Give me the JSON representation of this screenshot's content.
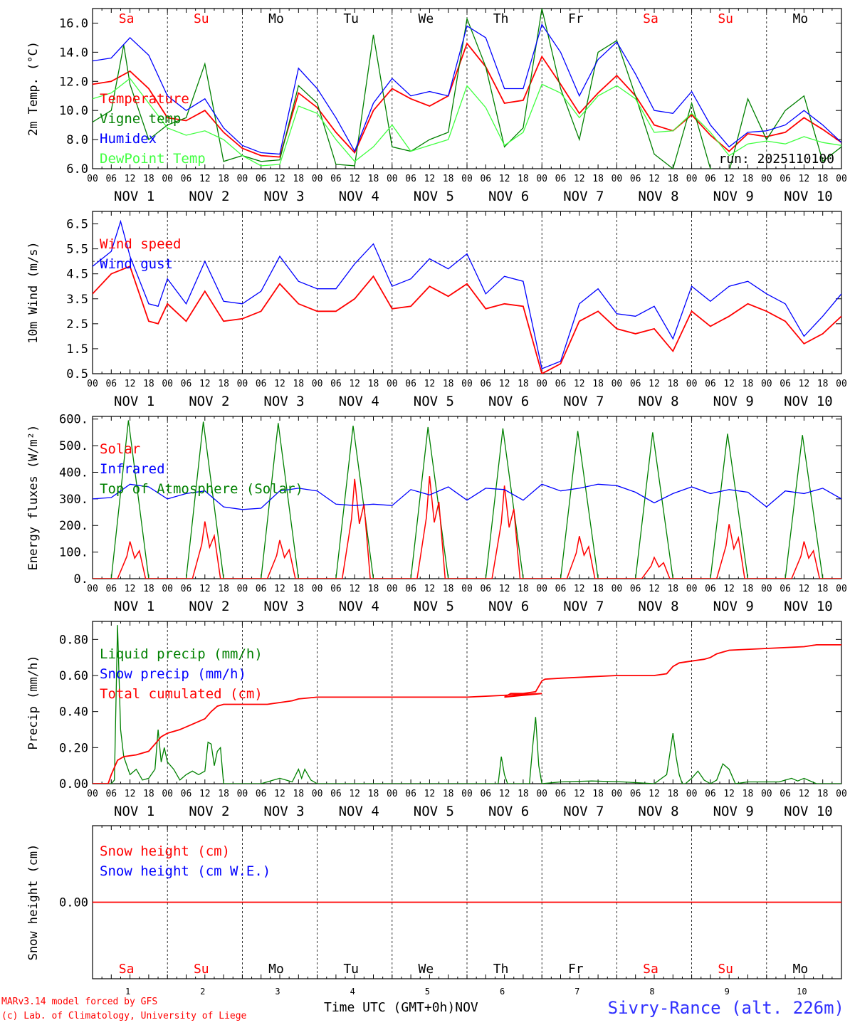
{
  "footer": {
    "model": "MARv3.14 model forced by GFS",
    "lab": "(c) Lab. of Climatology, University of Liege",
    "time_axis": "Time UTC (GMT+0h)",
    "month_label": "NOV",
    "station": "Sivry-Rance (alt. 226m)"
  },
  "colors": {
    "red": "#ff0000",
    "green": "#008000",
    "blue": "#0000ff",
    "lightgreen": "#40ff40",
    "weekend": "#ff0000",
    "weekday": "#000000"
  },
  "days": [
    "Sa",
    "Su",
    "Mo",
    "Tu",
    "We",
    "Th",
    "Fr",
    "Sa",
    "Su",
    "Mo"
  ],
  "weekend_days": [
    0,
    1,
    7,
    8
  ],
  "date_labels": [
    "NOV  1",
    "NOV  2",
    "NOV  3",
    "NOV  4",
    "NOV  5",
    "NOV  6",
    "NOV  7",
    "NOV  8",
    "NOV  9",
    "NOV 10"
  ],
  "bottom_day_numbers": [
    "1",
    "2",
    "3",
    "4",
    "5",
    "6",
    "7",
    "8",
    "9",
    "10"
  ],
  "hour_ticks": [
    "00",
    "06",
    "12",
    "18"
  ],
  "chart_data": [
    {
      "id": "temperature",
      "type": "line",
      "ylabel": "2m Temp. (°C)",
      "ylim": [
        6.0,
        17.0
      ],
      "yticks": [
        6.0,
        8.0,
        10.0,
        12.0,
        14.0,
        16.0
      ],
      "run_label": "run: 2025110100",
      "x_unit": "hours since 2025-11-01 00 UTC",
      "xlim": [
        0,
        240
      ],
      "legend": [
        "Temperature",
        "Vigne temp",
        "Humidex",
        "DewPoint Temp"
      ],
      "series": [
        {
          "name": "Temperature",
          "color": "red",
          "x": [
            0,
            6,
            12,
            18,
            24,
            30,
            36,
            42,
            48,
            54,
            60,
            66,
            72,
            78,
            84,
            90,
            96,
            102,
            108,
            114,
            120,
            126,
            132,
            138,
            144,
            150,
            156,
            162,
            168,
            174,
            180,
            186,
            192,
            198,
            204,
            210,
            216,
            222,
            228,
            234,
            240
          ],
          "y": [
            11.8,
            12.0,
            12.7,
            11.5,
            9.5,
            9.3,
            10.0,
            8.5,
            7.4,
            6.9,
            6.8,
            11.2,
            10.2,
            8.5,
            7.1,
            10.0,
            11.5,
            10.8,
            10.3,
            11.0,
            14.6,
            13.0,
            10.5,
            10.7,
            13.7,
            11.8,
            9.8,
            11.2,
            12.4,
            11.0,
            9.0,
            8.6,
            9.7,
            8.3,
            7.2,
            8.4,
            8.2,
            8.5,
            9.5,
            8.7,
            7.8
          ]
        },
        {
          "name": "Vigne temp",
          "color": "green",
          "x": [
            0,
            6,
            10,
            12,
            18,
            24,
            30,
            36,
            42,
            48,
            54,
            60,
            66,
            72,
            78,
            84,
            90,
            96,
            102,
            108,
            114,
            120,
            126,
            132,
            138,
            144,
            150,
            156,
            162,
            168,
            174,
            180,
            186,
            192,
            198,
            204,
            210,
            216,
            222,
            228,
            234,
            240
          ],
          "y": [
            9.2,
            10.0,
            14.5,
            11.8,
            8.0,
            9.0,
            9.5,
            13.2,
            6.5,
            6.9,
            6.5,
            6.6,
            11.7,
            10.5,
            6.3,
            6.2,
            15.2,
            7.5,
            7.2,
            8.0,
            8.5,
            16.3,
            13.0,
            7.5,
            8.8,
            17.0,
            11.5,
            8.0,
            14.0,
            14.8,
            11.0,
            7.0,
            6.0,
            10.5,
            6.0,
            5.8,
            10.8,
            8.0,
            10.0,
            11.0,
            6.5,
            7.5
          ]
        },
        {
          "name": "Humidex",
          "color": "blue",
          "x": [
            0,
            6,
            12,
            18,
            24,
            30,
            36,
            42,
            48,
            54,
            60,
            66,
            72,
            78,
            84,
            90,
            96,
            102,
            108,
            114,
            120,
            126,
            132,
            138,
            144,
            150,
            156,
            162,
            168,
            174,
            180,
            186,
            192,
            198,
            204,
            210,
            216,
            222,
            228,
            234,
            240
          ],
          "y": [
            13.4,
            13.6,
            15.0,
            13.8,
            11.0,
            10.0,
            10.8,
            8.8,
            7.6,
            7.1,
            7.0,
            12.9,
            11.5,
            9.5,
            7.2,
            10.5,
            12.2,
            11.0,
            11.3,
            11.0,
            15.8,
            15.0,
            11.5,
            11.5,
            15.9,
            14.0,
            11.0,
            13.5,
            14.7,
            12.5,
            10.0,
            9.8,
            11.3,
            9.0,
            7.5,
            8.5,
            8.6,
            9.0,
            10.0,
            9.0,
            7.8
          ]
        },
        {
          "name": "DewPoint Temp",
          "color": "lightgreen",
          "x": [
            0,
            6,
            12,
            18,
            24,
            30,
            36,
            42,
            48,
            54,
            60,
            66,
            72,
            78,
            84,
            90,
            96,
            102,
            108,
            114,
            120,
            126,
            132,
            138,
            144,
            150,
            156,
            162,
            168,
            174,
            180,
            186,
            192,
            198,
            204,
            210,
            216,
            222,
            228,
            234,
            240
          ],
          "y": [
            10.8,
            11.2,
            12.2,
            10.5,
            8.8,
            8.3,
            8.6,
            8.0,
            6.9,
            6.2,
            6.3,
            10.3,
            9.8,
            8.0,
            6.5,
            7.5,
            9.0,
            7.2,
            7.6,
            8.0,
            11.7,
            10.2,
            7.6,
            8.5,
            11.8,
            11.2,
            9.5,
            11.0,
            11.7,
            10.8,
            8.5,
            8.6,
            9.8,
            8.5,
            6.9,
            7.7,
            7.9,
            7.7,
            8.2,
            7.8,
            7.6
          ]
        }
      ]
    },
    {
      "id": "wind",
      "type": "line",
      "ylabel": "10m Wind (m/s)",
      "ylim": [
        0.5,
        7.0
      ],
      "yticks": [
        0.5,
        1.5,
        2.5,
        3.5,
        4.5,
        5.5,
        6.5
      ],
      "reference_line": 5.0,
      "xlim": [
        0,
        240
      ],
      "legend": [
        "Wind speed",
        "Wind gust"
      ],
      "series": [
        {
          "name": "Wind speed",
          "color": "red",
          "x": [
            0,
            6,
            12,
            18,
            21,
            24,
            30,
            36,
            42,
            48,
            54,
            60,
            66,
            72,
            78,
            84,
            90,
            96,
            102,
            108,
            114,
            120,
            126,
            132,
            138,
            144,
            150,
            156,
            162,
            168,
            174,
            180,
            186,
            192,
            198,
            204,
            210,
            216,
            222,
            228,
            234,
            240
          ],
          "y": [
            3.7,
            4.5,
            4.8,
            2.6,
            2.5,
            3.3,
            2.6,
            3.8,
            2.6,
            2.7,
            3.0,
            4.1,
            3.3,
            3.0,
            3.0,
            3.5,
            4.4,
            3.1,
            3.2,
            4.0,
            3.6,
            4.1,
            3.1,
            3.3,
            3.2,
            0.5,
            0.9,
            2.6,
            3.0,
            2.3,
            2.1,
            2.3,
            1.4,
            3.0,
            2.4,
            2.8,
            3.3,
            3.0,
            2.6,
            1.7,
            2.1,
            2.8
          ]
        },
        {
          "name": "Wind gust",
          "color": "blue",
          "x": [
            0,
            6,
            9,
            12,
            18,
            21,
            24,
            30,
            36,
            42,
            48,
            54,
            60,
            66,
            72,
            78,
            84,
            90,
            96,
            102,
            108,
            114,
            120,
            126,
            132,
            138,
            144,
            150,
            156,
            162,
            168,
            174,
            180,
            186,
            192,
            198,
            204,
            210,
            216,
            222,
            228,
            234,
            240
          ],
          "y": [
            4.8,
            5.4,
            6.6,
            5.2,
            3.3,
            3.2,
            4.3,
            3.3,
            5.0,
            3.4,
            3.3,
            3.8,
            5.2,
            4.2,
            3.9,
            3.9,
            4.9,
            5.7,
            4.0,
            4.3,
            5.1,
            4.7,
            5.3,
            3.7,
            4.4,
            4.2,
            0.7,
            1.0,
            3.3,
            3.9,
            2.9,
            2.8,
            3.2,
            1.9,
            4.0,
            3.4,
            4.0,
            4.2,
            3.7,
            3.3,
            2.0,
            2.8,
            3.7
          ]
        }
      ]
    },
    {
      "id": "fluxes",
      "type": "line",
      "ylabel": "Energy fluxes (W/m²)",
      "ylim": [
        0,
        610
      ],
      "yticks": [
        0,
        100,
        200,
        300,
        400,
        500,
        600
      ],
      "ytick_labels": [
        "0.",
        "100.",
        "200.",
        "300.",
        "400.",
        "500.",
        "600."
      ],
      "xlim": [
        0,
        240
      ],
      "legend": [
        "Solar",
        "Infrared",
        "Top of Atmosphere (Solar)"
      ],
      "toa_peaks": [
        595,
        590,
        585,
        575,
        570,
        565,
        555,
        550,
        545,
        540
      ],
      "solar_peaks": [
        140,
        215,
        145,
        375,
        385,
        350,
        160,
        80,
        205,
        140
      ],
      "series": [
        {
          "name": "Infrared",
          "color": "blue",
          "x": [
            0,
            6,
            12,
            18,
            24,
            30,
            36,
            42,
            48,
            54,
            60,
            66,
            72,
            78,
            84,
            90,
            96,
            102,
            108,
            114,
            120,
            126,
            132,
            138,
            144,
            150,
            156,
            162,
            168,
            174,
            180,
            186,
            192,
            198,
            204,
            210,
            216,
            222,
            228,
            234,
            240
          ],
          "y": [
            300,
            305,
            355,
            345,
            300,
            320,
            330,
            270,
            260,
            265,
            330,
            340,
            330,
            280,
            275,
            280,
            275,
            335,
            315,
            345,
            295,
            340,
            335,
            295,
            355,
            330,
            340,
            355,
            350,
            325,
            285,
            320,
            345,
            320,
            335,
            325,
            270,
            330,
            320,
            340,
            300
          ]
        }
      ]
    },
    {
      "id": "precip",
      "type": "line",
      "ylabel": "Precip (mm/h)",
      "ylim": [
        0,
        0.9
      ],
      "yticks": [
        0,
        0.2,
        0.4,
        0.6,
        0.8
      ],
      "ytick_labels": [
        "0.00",
        "0.20",
        "0.40",
        "0.60",
        "0.80"
      ],
      "xlim": [
        0,
        240
      ],
      "legend": [
        "Liquid precip (mm/h)",
        "Snow precip (mm/h)",
        "Total cumulated (cm)"
      ],
      "series": [
        {
          "name": "Liquid precip (mm/h)",
          "color": "green",
          "x": [
            0,
            6,
            7,
            8,
            9,
            10,
            12,
            14,
            16,
            18,
            20,
            21,
            22,
            23,
            24,
            26,
            28,
            30,
            32,
            34,
            36,
            37,
            38,
            39,
            40,
            41,
            42,
            48,
            54,
            58,
            60,
            62,
            64,
            66,
            67,
            68,
            69,
            70,
            72,
            90,
            120,
            130,
            131,
            132,
            133,
            134,
            140,
            141,
            142,
            143,
            144,
            150,
            160,
            170,
            180,
            184,
            186,
            187,
            188,
            189,
            190,
            192,
            194,
            196,
            198,
            200,
            202,
            204,
            206,
            210,
            220,
            224,
            226,
            228,
            232,
            240
          ],
          "y": [
            0,
            0,
            0.02,
            0.88,
            0.3,
            0.15,
            0.05,
            0.08,
            0.02,
            0.03,
            0.08,
            0.3,
            0.12,
            0.2,
            0.12,
            0.08,
            0.02,
            0.05,
            0.07,
            0.05,
            0.07,
            0.23,
            0.22,
            0.1,
            0.18,
            0.2,
            0,
            0,
            0,
            0.02,
            0.03,
            0.02,
            0.01,
            0.08,
            0.03,
            0.08,
            0.05,
            0.02,
            0,
            0,
            0,
            0,
            0.15,
            0.05,
            0,
            0,
            0,
            0.2,
            0.37,
            0.1,
            0,
            0.01,
            0.015,
            0.01,
            0,
            0.05,
            0.28,
            0.15,
            0.05,
            0,
            0,
            0.03,
            0.07,
            0.02,
            0,
            0.02,
            0.11,
            0.08,
            0,
            0.01,
            0.01,
            0.03,
            0.015,
            0.03,
            0,
            0
          ]
        },
        {
          "name": "Total cumulated (cm)",
          "color": "red",
          "x": [
            0,
            5,
            6,
            8,
            10,
            14,
            18,
            20,
            22,
            24,
            28,
            32,
            36,
            38,
            40,
            42,
            48,
            56,
            60,
            64,
            66,
            72,
            96,
            120,
            144,
            132,
            134,
            138,
            142,
            144,
            145,
            150,
            168,
            180,
            184,
            186,
            188,
            192,
            196,
            198,
            200,
            204,
            216,
            228,
            232,
            240
          ],
          "y": [
            0,
            0,
            0.05,
            0.13,
            0.15,
            0.16,
            0.18,
            0.22,
            0.26,
            0.28,
            0.3,
            0.33,
            0.36,
            0.4,
            0.43,
            0.44,
            0.44,
            0.44,
            0.45,
            0.46,
            0.47,
            0.48,
            0.48,
            0.48,
            0.5,
            0.48,
            0.5,
            0.5,
            0.51,
            0.57,
            0.58,
            0.585,
            0.6,
            0.6,
            0.61,
            0.65,
            0.67,
            0.68,
            0.69,
            0.7,
            0.72,
            0.74,
            0.75,
            0.76,
            0.77,
            0.77
          ]
        }
      ]
    },
    {
      "id": "snow",
      "type": "line",
      "ylabel": "Snow height (cm)",
      "ylim": [
        -1,
        1
      ],
      "yticks": [
        0
      ],
      "ytick_labels": [
        "0.00"
      ],
      "xlim": [
        0,
        240
      ],
      "legend": [
        "Snow height (cm)",
        "Snow height (cm W.E.)"
      ],
      "series": [
        {
          "name": "Snow height (cm)",
          "color": "red",
          "x": [
            0,
            240
          ],
          "y": [
            0,
            0
          ]
        }
      ]
    }
  ]
}
